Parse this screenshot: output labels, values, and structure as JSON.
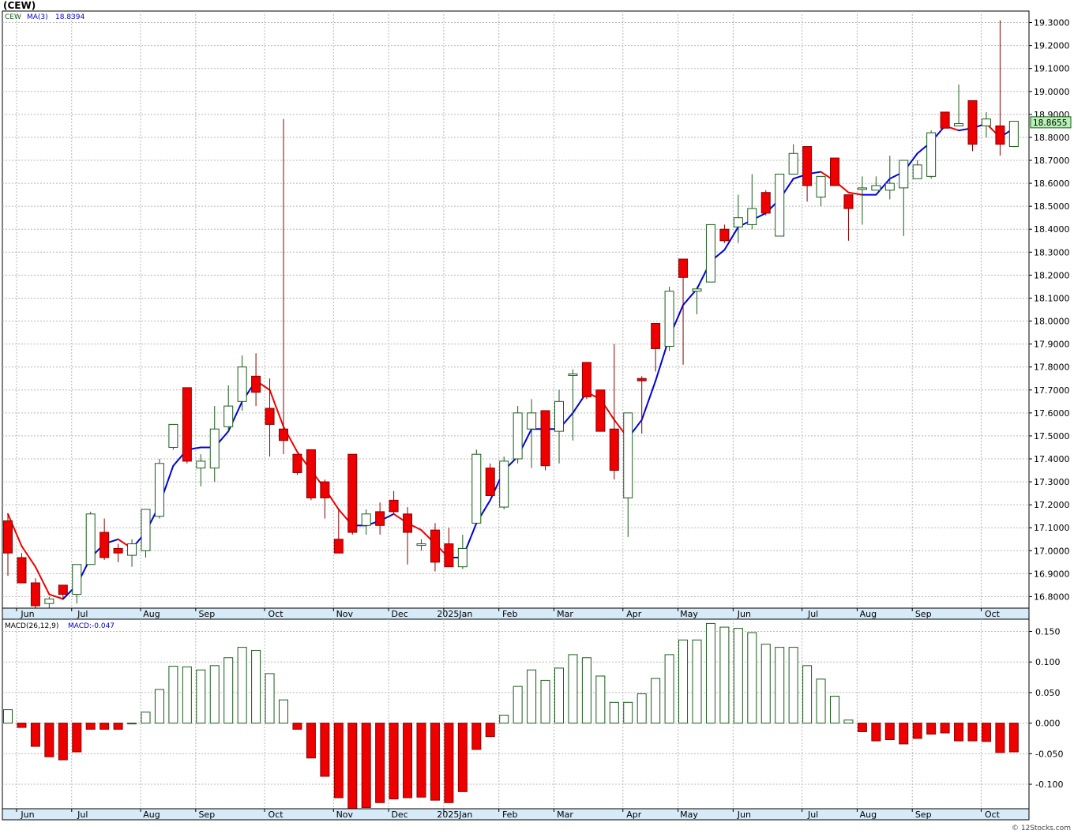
{
  "header": {
    "symbol_title": "(CEW)"
  },
  "price_panel": {
    "legend_symbol": "CEW",
    "legend_ma_label": "MA(3)",
    "legend_ma_value": "18.8394",
    "last_price_label": "18.8655"
  },
  "macd_panel": {
    "legend_label": "MACD(26,12,9)",
    "legend_value": "MACD:-0.047"
  },
  "footer": {
    "copyright": "© 12Stocks.com"
  },
  "colors": {
    "up_outline": "#1a5c1a",
    "down_fill": "#ee0000",
    "ma_up": "#0000dd",
    "ma_down": "#ee0000",
    "grid": "#b8b8b8",
    "last_price_bg": "#b8f0b8"
  },
  "chart_data": [
    {
      "type": "candlestick",
      "title": "(CEW)",
      "indicator": "MA(3)",
      "ylim": [
        16.75,
        19.35
      ],
      "y_ticks": [
        "16.8000",
        "16.9000",
        "17.0000",
        "17.1000",
        "17.2000",
        "17.3000",
        "17.4000",
        "17.5000",
        "17.6000",
        "17.7000",
        "17.8000",
        "17.9000",
        "18.0000",
        "18.1000",
        "18.2000",
        "18.3000",
        "18.4000",
        "18.5000",
        "18.6000",
        "18.7000",
        "18.8000",
        "18.9000",
        "19.0000",
        "19.1000",
        "19.2000",
        "19.3000"
      ],
      "x_labels": [
        "Jun",
        "Jul",
        "Aug",
        "Sep",
        "Oct",
        "Nov",
        "Dec",
        "2025Jan",
        "Feb",
        "Mar",
        "Apr",
        "May",
        "Jun",
        "Jul",
        "Aug",
        "Sep",
        "Oct"
      ],
      "x_label_index": [
        0.8,
        4.8,
        9.8,
        13.8,
        18.8,
        23.8,
        27.8,
        31.8,
        35.8,
        39.8,
        44.8,
        48.8,
        52.8,
        57.8,
        61.8,
        65.8,
        70.8
      ],
      "grid": true,
      "last_value": 18.8655,
      "ohlc": [
        [
          17.13,
          17.16,
          16.89,
          16.99
        ],
        [
          16.97,
          16.99,
          16.87,
          16.86
        ],
        [
          16.86,
          16.88,
          16.75,
          16.76
        ],
        [
          16.77,
          16.8,
          16.75,
          16.79
        ],
        [
          16.85,
          16.85,
          16.79,
          16.81
        ],
        [
          16.81,
          16.94,
          16.77,
          16.94
        ],
        [
          16.94,
          17.17,
          16.94,
          17.16
        ],
        [
          17.08,
          17.14,
          16.96,
          16.97
        ],
        [
          17.01,
          17.03,
          16.95,
          16.99
        ],
        [
          16.98,
          17.05,
          16.93,
          17.03
        ],
        [
          17.0,
          17.18,
          16.97,
          17.18
        ],
        [
          17.15,
          17.4,
          17.14,
          17.38
        ],
        [
          17.45,
          17.55,
          17.44,
          17.55
        ],
        [
          17.71,
          17.71,
          17.38,
          17.39
        ],
        [
          17.36,
          17.42,
          17.28,
          17.39
        ],
        [
          17.36,
          17.63,
          17.3,
          17.53
        ],
        [
          17.54,
          17.72,
          17.52,
          17.63
        ],
        [
          17.65,
          17.85,
          17.61,
          17.8
        ],
        [
          17.76,
          17.86,
          17.63,
          17.69
        ],
        [
          17.62,
          17.75,
          17.41,
          17.55
        ],
        [
          17.53,
          18.88,
          17.42,
          17.48
        ],
        [
          17.42,
          17.42,
          17.33,
          17.34
        ],
        [
          17.44,
          17.44,
          17.22,
          17.23
        ],
        [
          17.3,
          17.31,
          17.14,
          17.23
        ],
        [
          17.05,
          17.18,
          16.99,
          16.99
        ],
        [
          17.42,
          17.42,
          17.07,
          17.08
        ],
        [
          17.11,
          17.18,
          17.07,
          17.16
        ],
        [
          17.17,
          17.21,
          17.07,
          17.11
        ],
        [
          17.22,
          17.26,
          17.16,
          17.17
        ],
        [
          17.16,
          17.19,
          16.94,
          17.08
        ],
        [
          17.03,
          17.05,
          17.0,
          17.03
        ],
        [
          17.09,
          17.12,
          16.91,
          16.95
        ],
        [
          17.03,
          17.1,
          16.94,
          16.93
        ],
        [
          16.93,
          17.07,
          16.92,
          17.01
        ],
        [
          17.12,
          17.44,
          17.12,
          17.42
        ],
        [
          17.36,
          17.38,
          17.24,
          17.24
        ],
        [
          17.19,
          17.41,
          17.18,
          17.39
        ],
        [
          17.4,
          17.63,
          17.38,
          17.6
        ],
        [
          17.53,
          17.66,
          17.36,
          17.6
        ],
        [
          17.61,
          17.61,
          17.35,
          17.37
        ],
        [
          17.52,
          17.7,
          17.38,
          17.65
        ],
        [
          17.77,
          17.79,
          17.48,
          17.77
        ],
        [
          17.82,
          17.82,
          17.66,
          17.67
        ],
        [
          17.7,
          17.7,
          17.52,
          17.52
        ],
        [
          17.53,
          17.9,
          17.31,
          17.35
        ],
        [
          17.23,
          17.6,
          17.06,
          17.6
        ],
        [
          17.75,
          17.76,
          17.51,
          17.74
        ],
        [
          17.99,
          17.99,
          17.78,
          17.88
        ],
        [
          17.89,
          18.15,
          17.87,
          18.13
        ],
        [
          18.27,
          18.27,
          17.81,
          18.19
        ],
        [
          18.13,
          18.15,
          18.03,
          18.14
        ],
        [
          18.17,
          18.42,
          18.17,
          18.42
        ],
        [
          18.4,
          18.42,
          18.34,
          18.35
        ],
        [
          18.41,
          18.55,
          18.34,
          18.45
        ],
        [
          18.42,
          18.64,
          18.4,
          18.49
        ],
        [
          18.56,
          18.57,
          18.46,
          18.47
        ],
        [
          18.37,
          18.64,
          18.37,
          18.64
        ],
        [
          18.64,
          18.77,
          18.64,
          18.73
        ],
        [
          18.76,
          18.76,
          18.52,
          18.59
        ],
        [
          18.54,
          18.63,
          18.5,
          18.63
        ],
        [
          18.71,
          18.71,
          18.59,
          18.59
        ],
        [
          18.55,
          18.55,
          18.35,
          18.49
        ],
        [
          18.58,
          18.63,
          18.42,
          18.58
        ],
        [
          18.57,
          18.63,
          18.57,
          18.59
        ],
        [
          18.57,
          18.72,
          18.53,
          18.6
        ],
        [
          18.58,
          18.7,
          18.37,
          18.7
        ],
        [
          18.62,
          18.7,
          18.62,
          18.68
        ],
        [
          18.63,
          18.83,
          18.62,
          18.82
        ],
        [
          18.91,
          18.91,
          18.84,
          18.84
        ],
        [
          18.85,
          19.03,
          18.85,
          18.86
        ],
        [
          18.96,
          18.96,
          18.74,
          18.77
        ],
        [
          18.85,
          18.91,
          18.8,
          18.88
        ],
        [
          18.85,
          19.31,
          18.72,
          18.77
        ],
        [
          18.76,
          18.87,
          18.76,
          18.87
        ]
      ],
      "ma3": [
        17.16,
        17.02,
        16.93,
        16.81,
        16.79,
        16.85,
        16.97,
        17.03,
        17.05,
        17.01,
        17.08,
        17.2,
        17.37,
        17.44,
        17.45,
        17.45,
        17.52,
        17.65,
        17.74,
        17.7,
        17.54,
        17.43,
        17.35,
        17.27,
        17.18,
        17.11,
        17.11,
        17.13,
        17.16,
        17.12,
        17.09,
        17.03,
        16.97,
        16.97,
        17.12,
        17.22,
        17.35,
        17.41,
        17.53,
        17.53,
        17.53,
        17.6,
        17.69,
        17.66,
        17.57,
        17.49,
        17.57,
        17.74,
        17.93,
        18.07,
        18.14,
        18.26,
        18.31,
        18.41,
        18.44,
        18.47,
        18.53,
        18.62,
        18.64,
        18.65,
        18.61,
        18.56,
        18.55,
        18.55,
        18.62,
        18.65,
        18.73,
        18.78,
        18.85,
        18.83,
        18.84,
        18.86,
        18.8,
        18.84
      ]
    },
    {
      "type": "bar",
      "title": "MACD(26,12,9)",
      "ylim": [
        -0.14,
        0.17
      ],
      "y_ticks": [
        "-0.100",
        "-0.050",
        "0.000",
        "0.050",
        "0.100",
        "0.150"
      ],
      "x_labels": [
        "Jun",
        "Jul",
        "Aug",
        "Sep",
        "Oct",
        "Nov",
        "Dec",
        "2025Jan",
        "Feb",
        "Mar",
        "Apr",
        "May",
        "Jun",
        "Jul",
        "Aug",
        "Sep",
        "Oct"
      ],
      "values": [
        0.022,
        -0.007,
        -0.038,
        -0.055,
        -0.06,
        -0.047,
        -0.01,
        -0.01,
        -0.01,
        0.0,
        0.018,
        0.055,
        0.093,
        0.092,
        0.087,
        0.094,
        0.107,
        0.124,
        0.119,
        0.081,
        0.038,
        -0.01,
        -0.057,
        -0.087,
        -0.122,
        -0.14,
        -0.138,
        -0.13,
        -0.124,
        -0.122,
        -0.121,
        -0.126,
        -0.13,
        -0.112,
        -0.043,
        -0.022,
        0.013,
        0.06,
        0.087,
        0.07,
        0.09,
        0.112,
        0.107,
        0.077,
        0.034,
        0.034,
        0.048,
        0.073,
        0.112,
        0.136,
        0.136,
        0.163,
        0.157,
        0.155,
        0.148,
        0.129,
        0.124,
        0.124,
        0.094,
        0.072,
        0.044,
        0.005,
        -0.014,
        -0.029,
        -0.027,
        -0.034,
        -0.025,
        -0.018,
        -0.016,
        -0.029,
        -0.029,
        -0.03,
        -0.048,
        -0.047
      ]
    }
  ]
}
